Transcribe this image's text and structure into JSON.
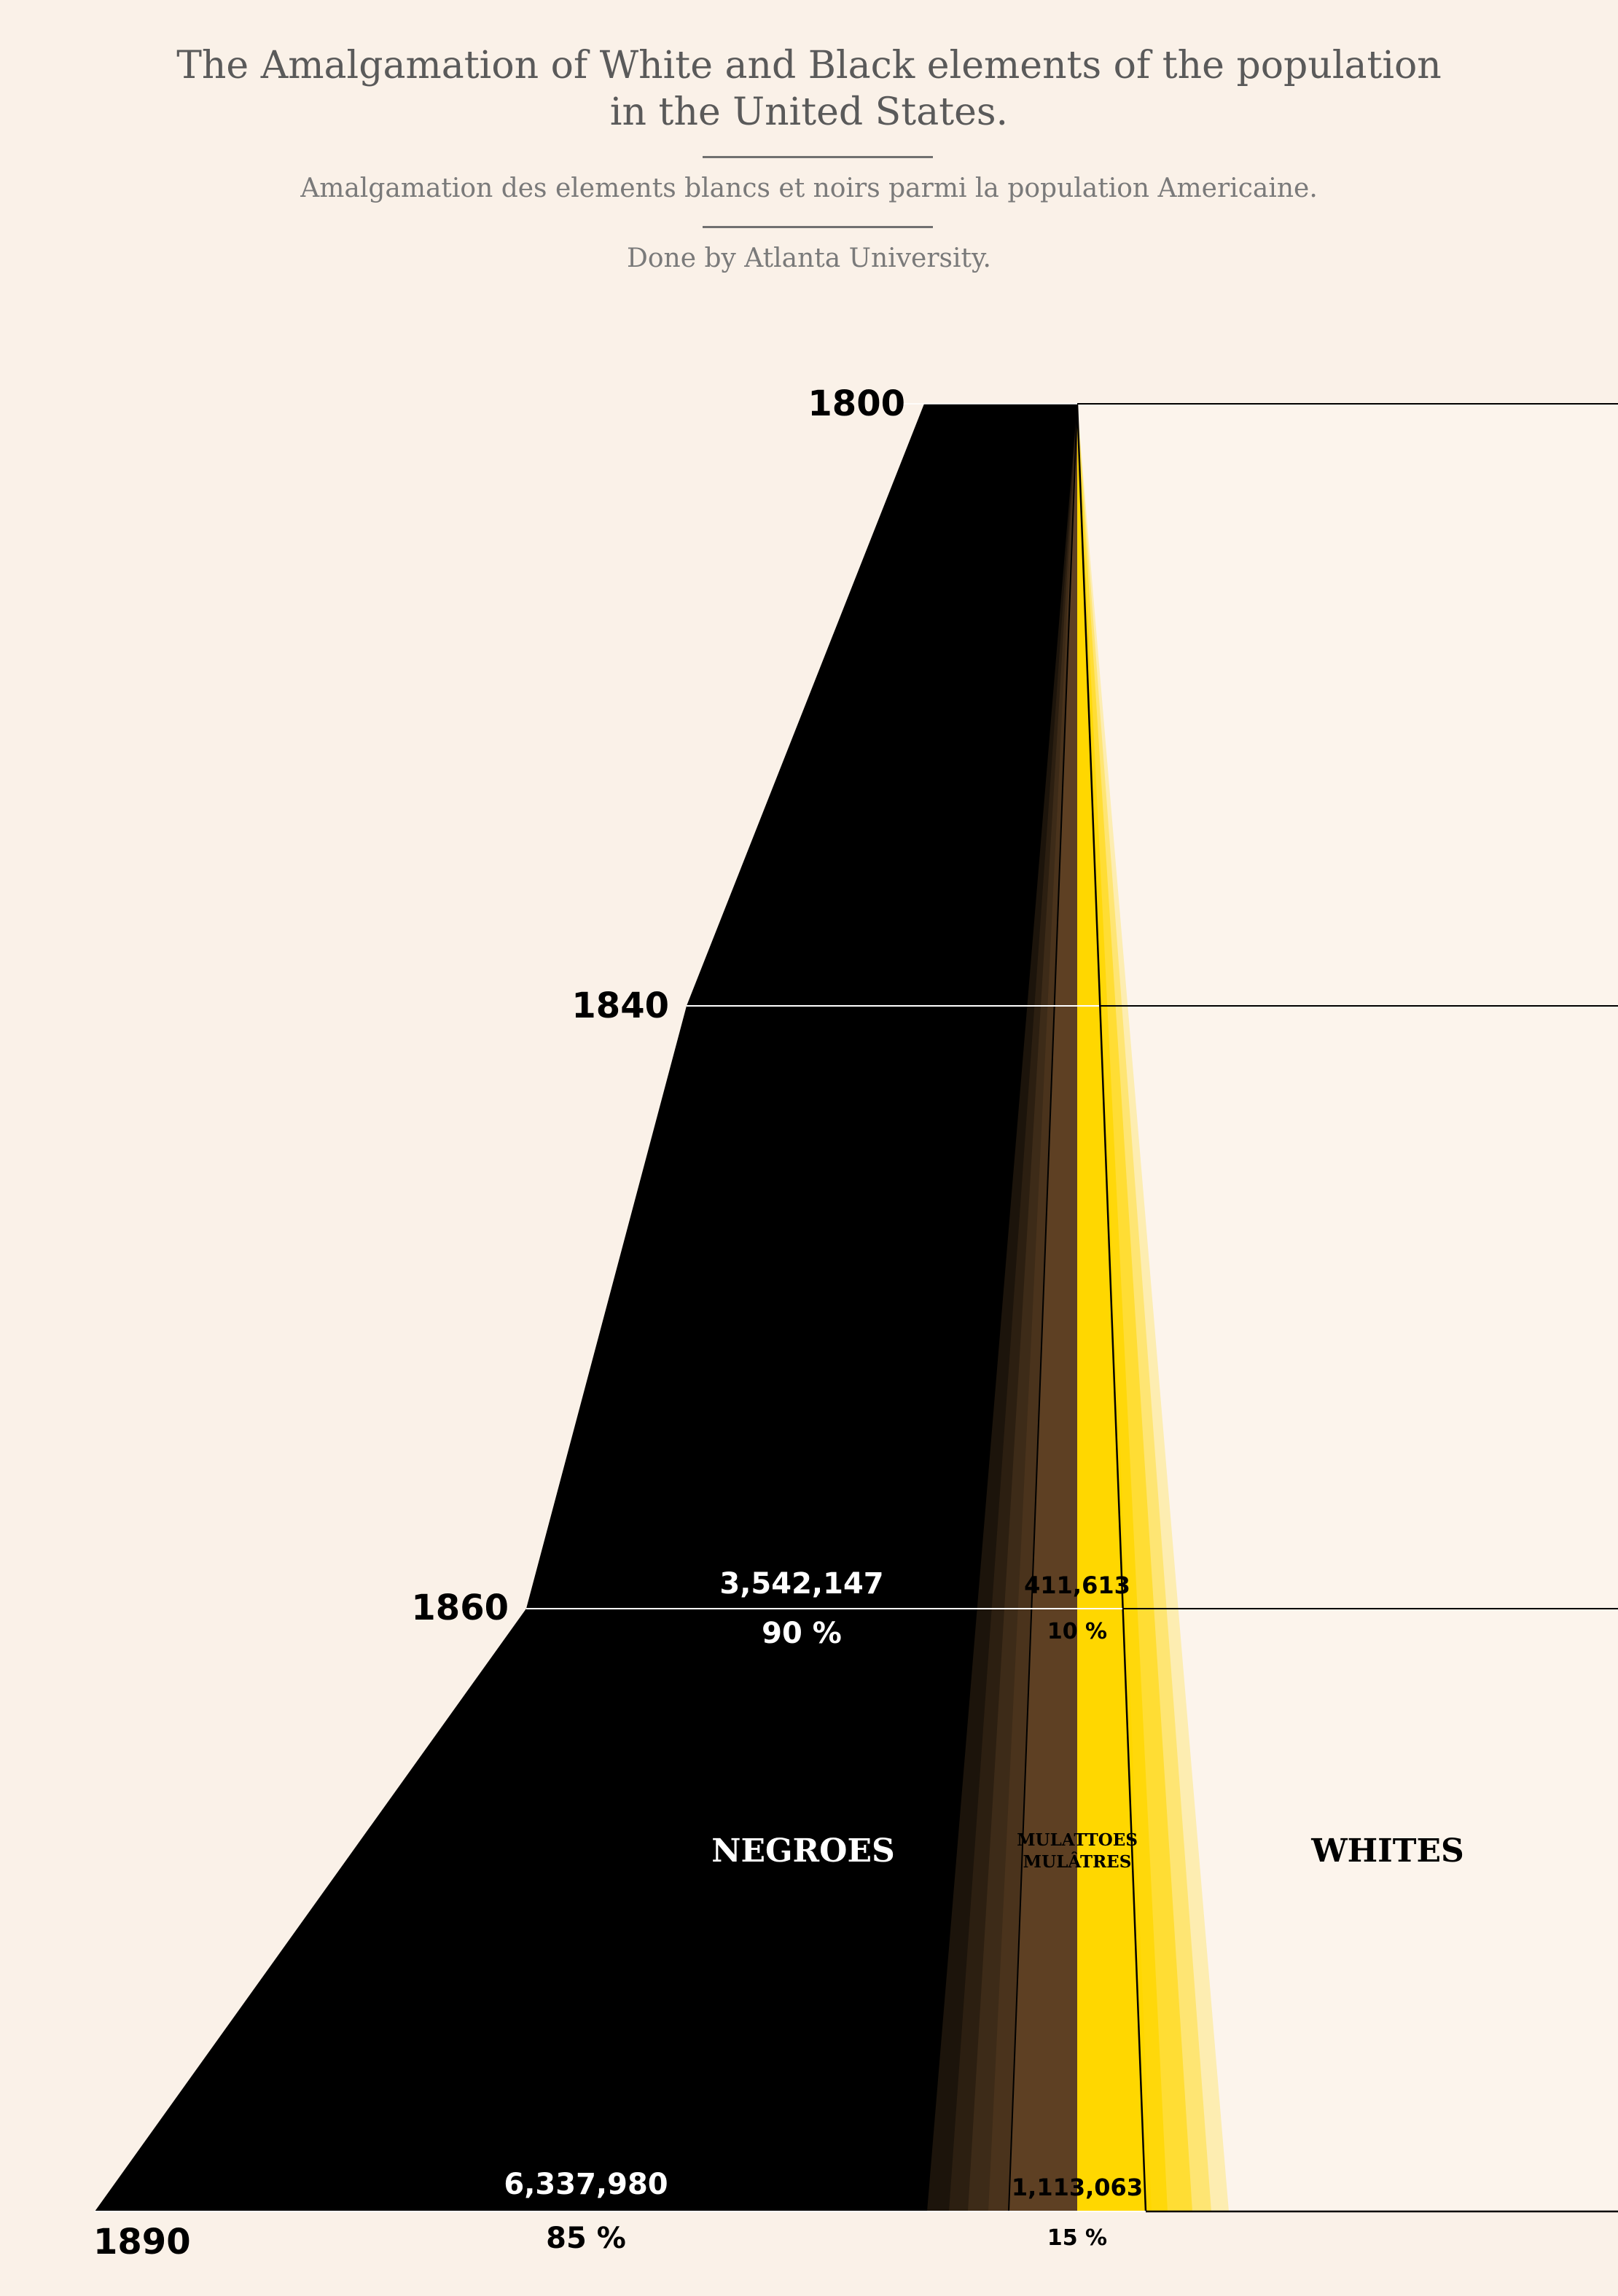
{
  "header": {
    "title_line1": "The Amalgamation of White and Black elements of the population",
    "title_line2": "in the United States.",
    "subtitle": "Amalgamation des elements blancs et noirs parmi la population Americaine.",
    "credit": "Done by Atlanta University."
  },
  "colors": {
    "background": "#faf1e8",
    "negroes": "#000000",
    "mulattoes": "#5e4023",
    "whites_wedge": "#ffd700",
    "whites_area": "#fcf4ec"
  },
  "chart_data": {
    "type": "area",
    "title": "The Amalgamation of White and Black elements of the population in the United States.",
    "years": [
      "1800",
      "1840",
      "1860",
      "1890"
    ],
    "categories": [
      "NEGROES",
      "MULATTOES",
      "WHITES"
    ],
    "series_labels": {
      "negroes": "NEGROES",
      "mulattoes_line1": "MULATTOES",
      "mulattoes_line2": "MULÂTRES",
      "whites": "WHITES"
    },
    "series": [
      {
        "name": "NEGROES",
        "values": [
          {
            "year": "1860",
            "count": "3,542,147",
            "percent": "90 %"
          },
          {
            "year": "1890",
            "count": "6,337,980",
            "percent": "85 %"
          }
        ]
      },
      {
        "name": "MULATTOES",
        "values": [
          {
            "year": "1860",
            "count": "411,613",
            "percent": "10 %"
          },
          {
            "year": "1890",
            "count": "1,113,063",
            "percent": "15 %"
          }
        ]
      }
    ]
  }
}
